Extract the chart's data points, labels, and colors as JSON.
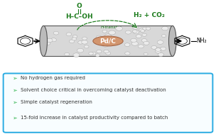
{
  "bullet_points": [
    "No hydrogen gas required",
    "Solvent choice critical in overcoming catalyst deactivation",
    "Simple catalyst regeneration",
    "15-fold increase in catalyst productivity compared to batch"
  ],
  "bullet_color": "#2db34a",
  "bullet_text_color": "#333333",
  "box_edge_color": "#29abe2",
  "box_face_color": "#f8fdff",
  "background_color": "#ffffff",
  "green_color": "#1a7a1a",
  "pdc_label": "Pd/C",
  "pdc_color": "#D2956E",
  "pdc_edge_color": "#A06040",
  "reactor_body_color": "#D8D8D8",
  "reactor_end_color": "#999999",
  "sphere_face": "#EBEBEB",
  "sphere_edge": "#999999"
}
